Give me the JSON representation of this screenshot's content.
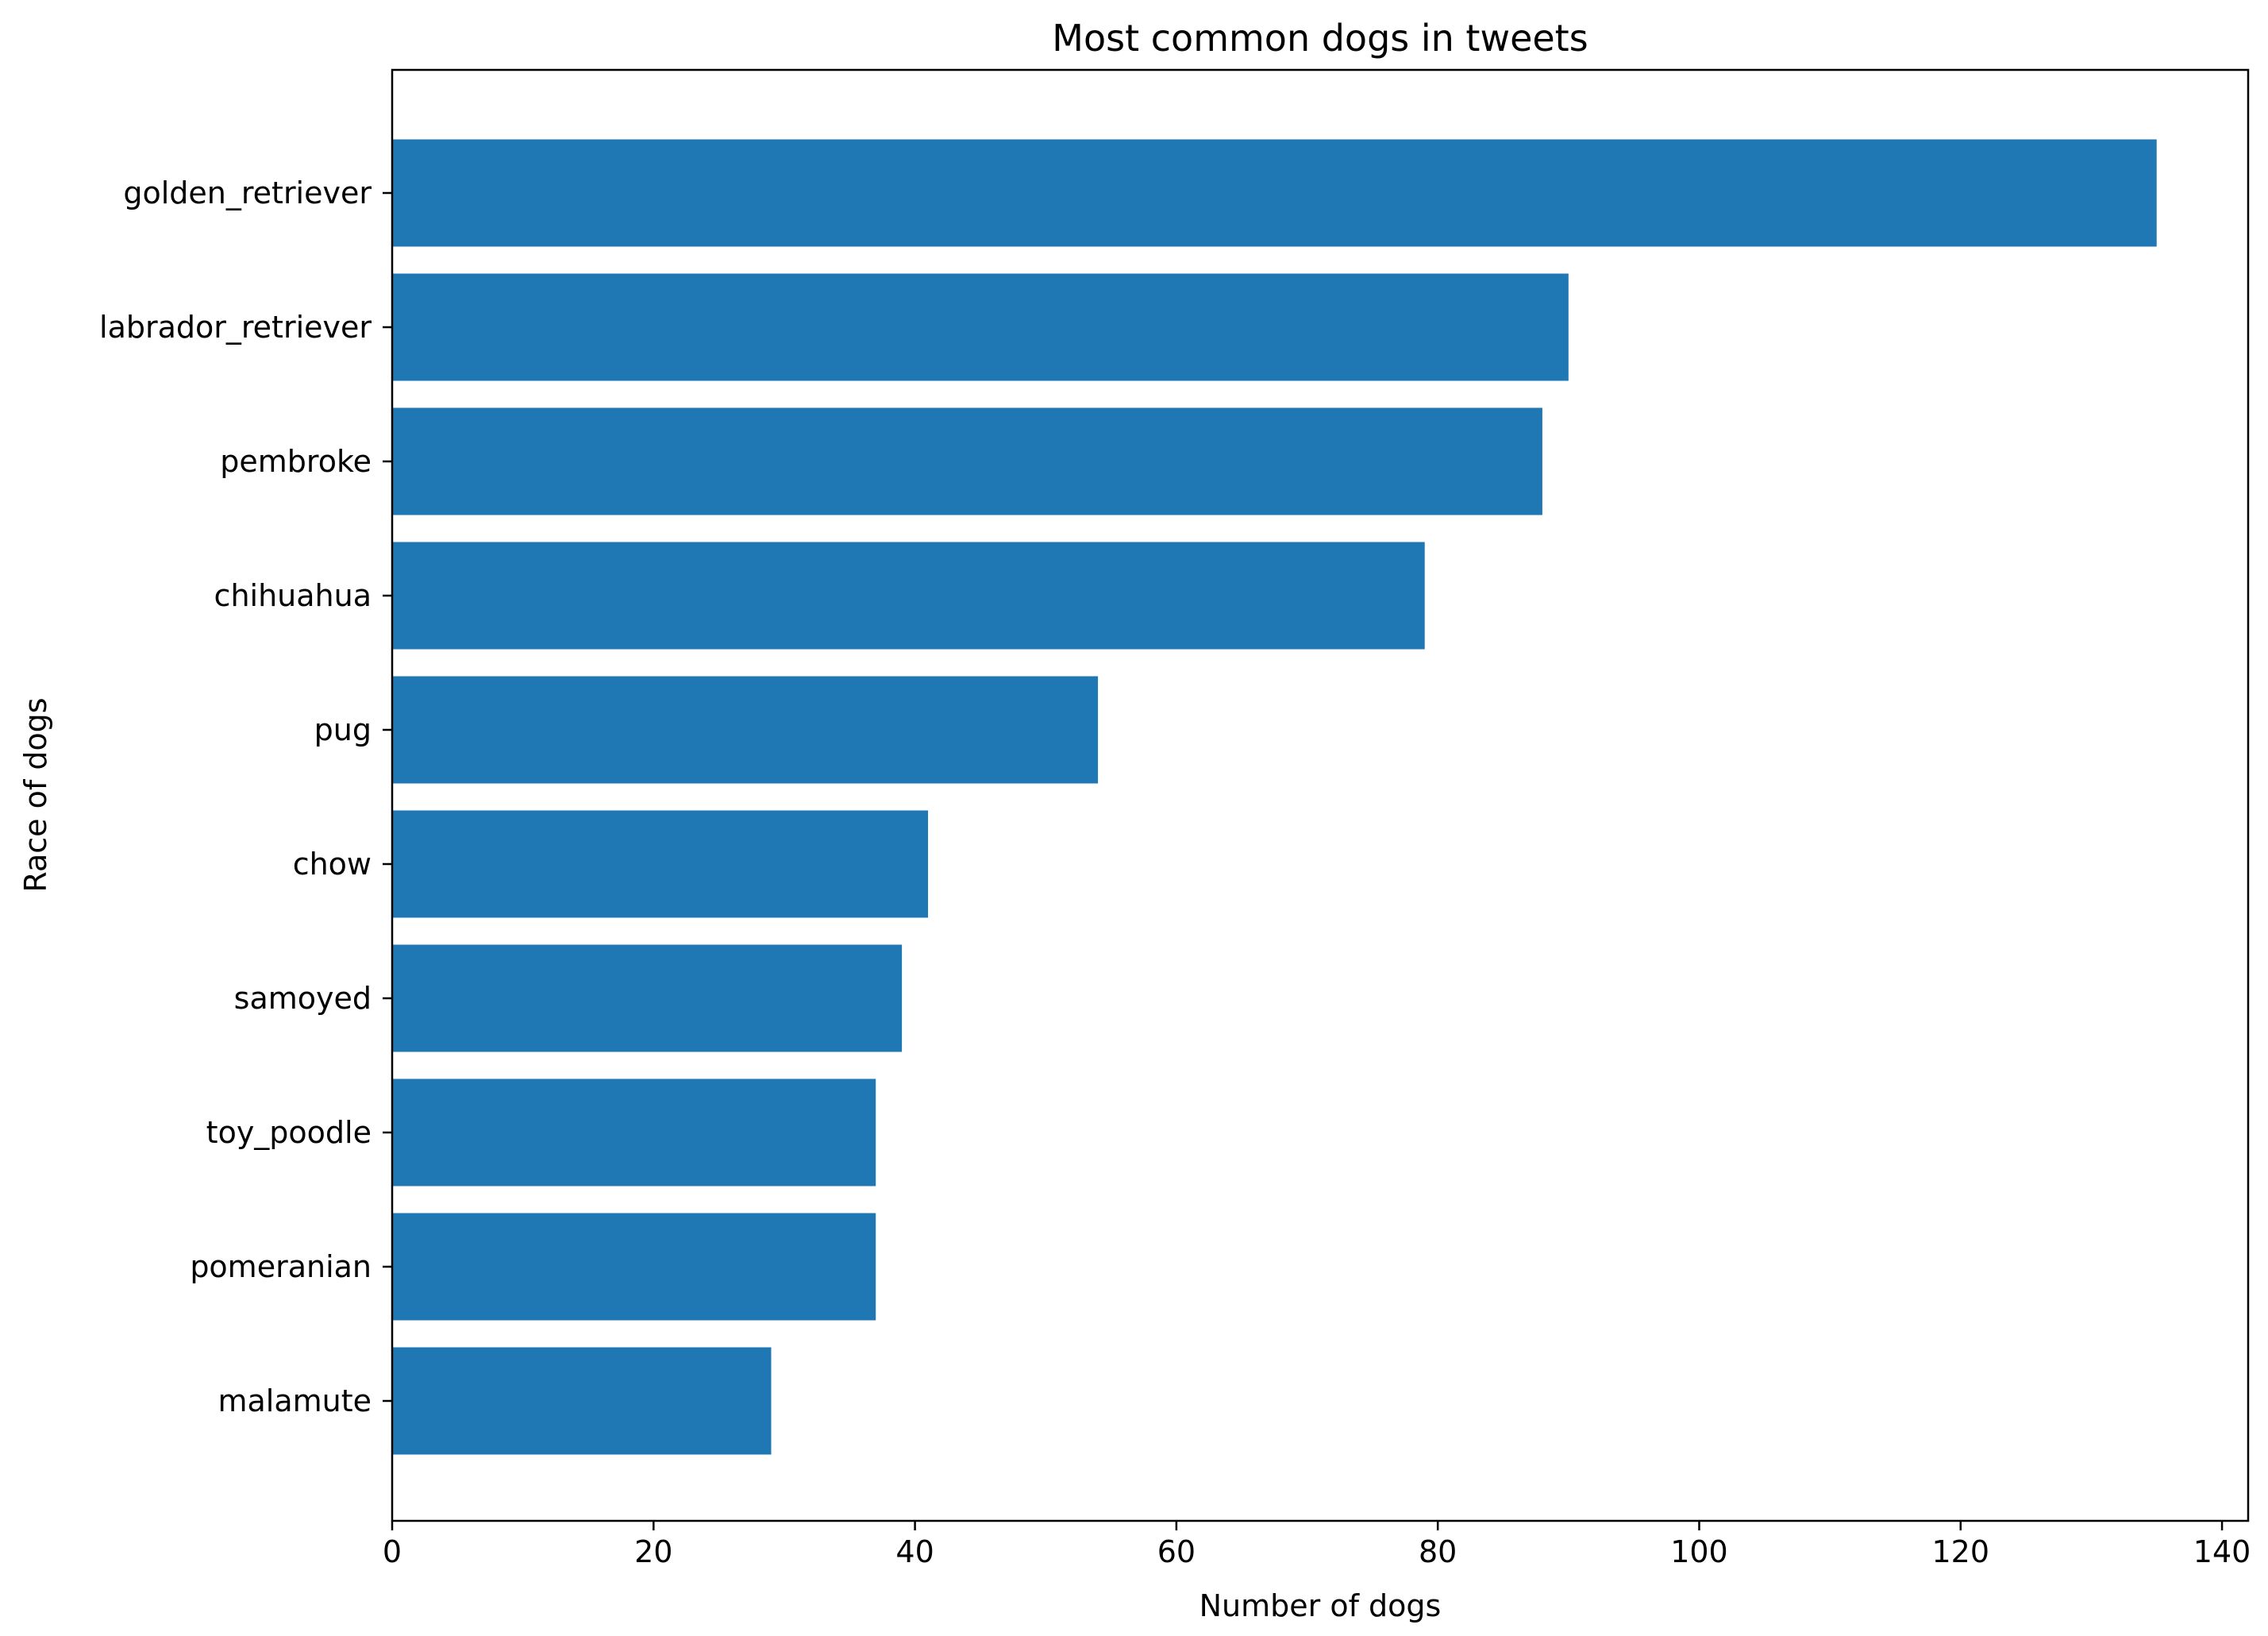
{
  "chart_data": {
    "type": "bar",
    "orientation": "horizontal",
    "title": "Most common dogs in tweets",
    "xlabel": "Number of dogs",
    "ylabel": "Race of dogs",
    "categories": [
      "golden_retriever",
      "labrador_retriever",
      "pembroke",
      "chihuahua",
      "pug",
      "chow",
      "samoyed",
      "toy_poodle",
      "pomeranian",
      "malamute"
    ],
    "values": [
      135,
      90,
      88,
      79,
      54,
      41,
      39,
      37,
      37,
      29
    ],
    "xlim": [
      0,
      142
    ],
    "xticks": [
      0,
      20,
      40,
      60,
      80,
      100,
      120,
      140
    ],
    "bar_color": "#1f77b4",
    "grid": false,
    "legend": "none"
  }
}
